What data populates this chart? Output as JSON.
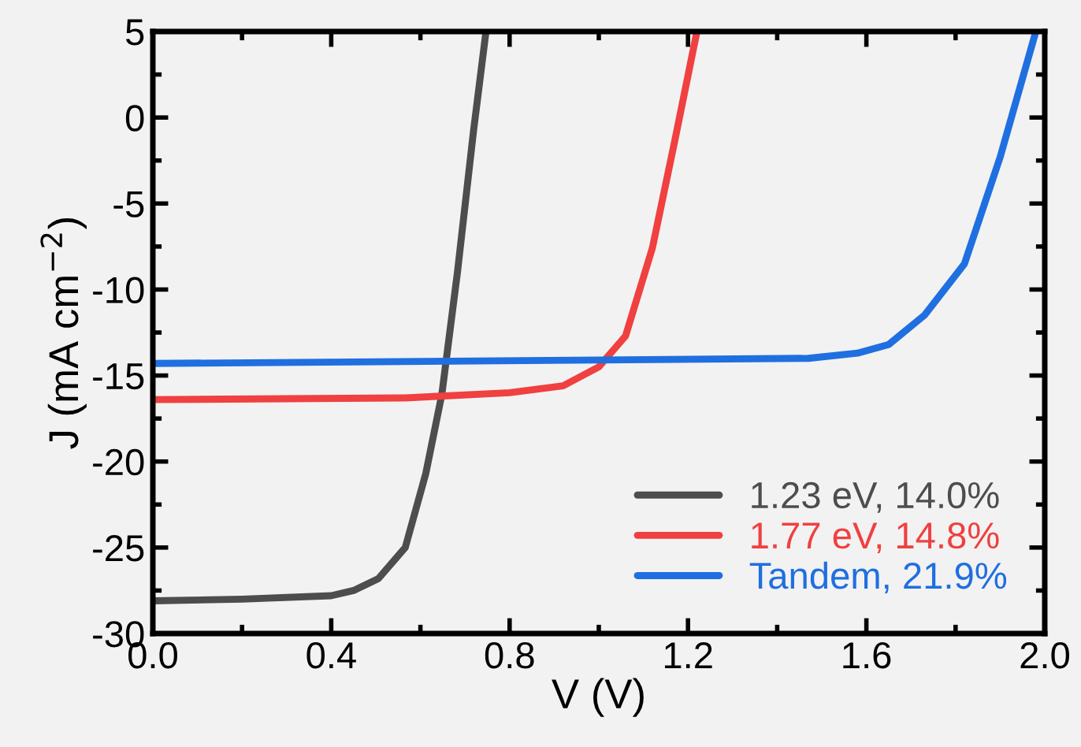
{
  "chart_data": {
    "type": "line",
    "xlabel": "V (V)",
    "ylabel": "J (mA cm$^{−2}$)",
    "xlim": [
      0,
      2.0
    ],
    "ylim": [
      -30,
      5
    ],
    "xticks": [
      {
        "value": 0,
        "label": "0.0"
      },
      0.4,
      0.8,
      1.2,
      1.6,
      {
        "value": 2.0,
        "label": "2.0"
      }
    ],
    "yticks": [
      -30,
      -25,
      -20,
      -15,
      -10,
      -5,
      0,
      5
    ],
    "grid": false,
    "legend": "bottom right",
    "line_style": "solid",
    "marker": "none",
    "series": [
      {
        "name": "1.23 eV, 14.0%",
        "color": "#4d4d4d",
        "x": [
          0,
          0.2,
          0.4,
          0.45,
          0.506,
          0.566,
          0.612,
          0.648,
          0.683,
          0.719,
          0.747
        ],
        "values": [
          -28.1,
          -28.0,
          -27.8,
          -27.5,
          -26.8,
          -25,
          -20.7,
          -16.1,
          -9,
          -0.8,
          5
        ]
      },
      {
        "name": "1.77 eV, 14.8%",
        "color": "#f04040",
        "x": [
          0,
          0.3,
          0.566,
          0.8,
          0.92,
          1.0,
          1.06,
          1.12,
          1.17,
          1.22
        ],
        "values": [
          -16.4,
          -16.35,
          -16.3,
          -16.0,
          -15.6,
          -14.5,
          -12.7,
          -7.6,
          -1.4,
          5
        ]
      },
      {
        "name": "Tandem, 21.9%",
        "color": "#1f6fe0",
        "x": [
          0,
          0.5,
          1.0,
          1.47,
          1.58,
          1.65,
          1.73,
          1.82,
          1.9,
          1.98
        ],
        "values": [
          -14.3,
          -14.2,
          -14.1,
          -14.0,
          -13.7,
          -13.2,
          -11.5,
          -8.5,
          -2.3,
          5
        ]
      }
    ]
  }
}
